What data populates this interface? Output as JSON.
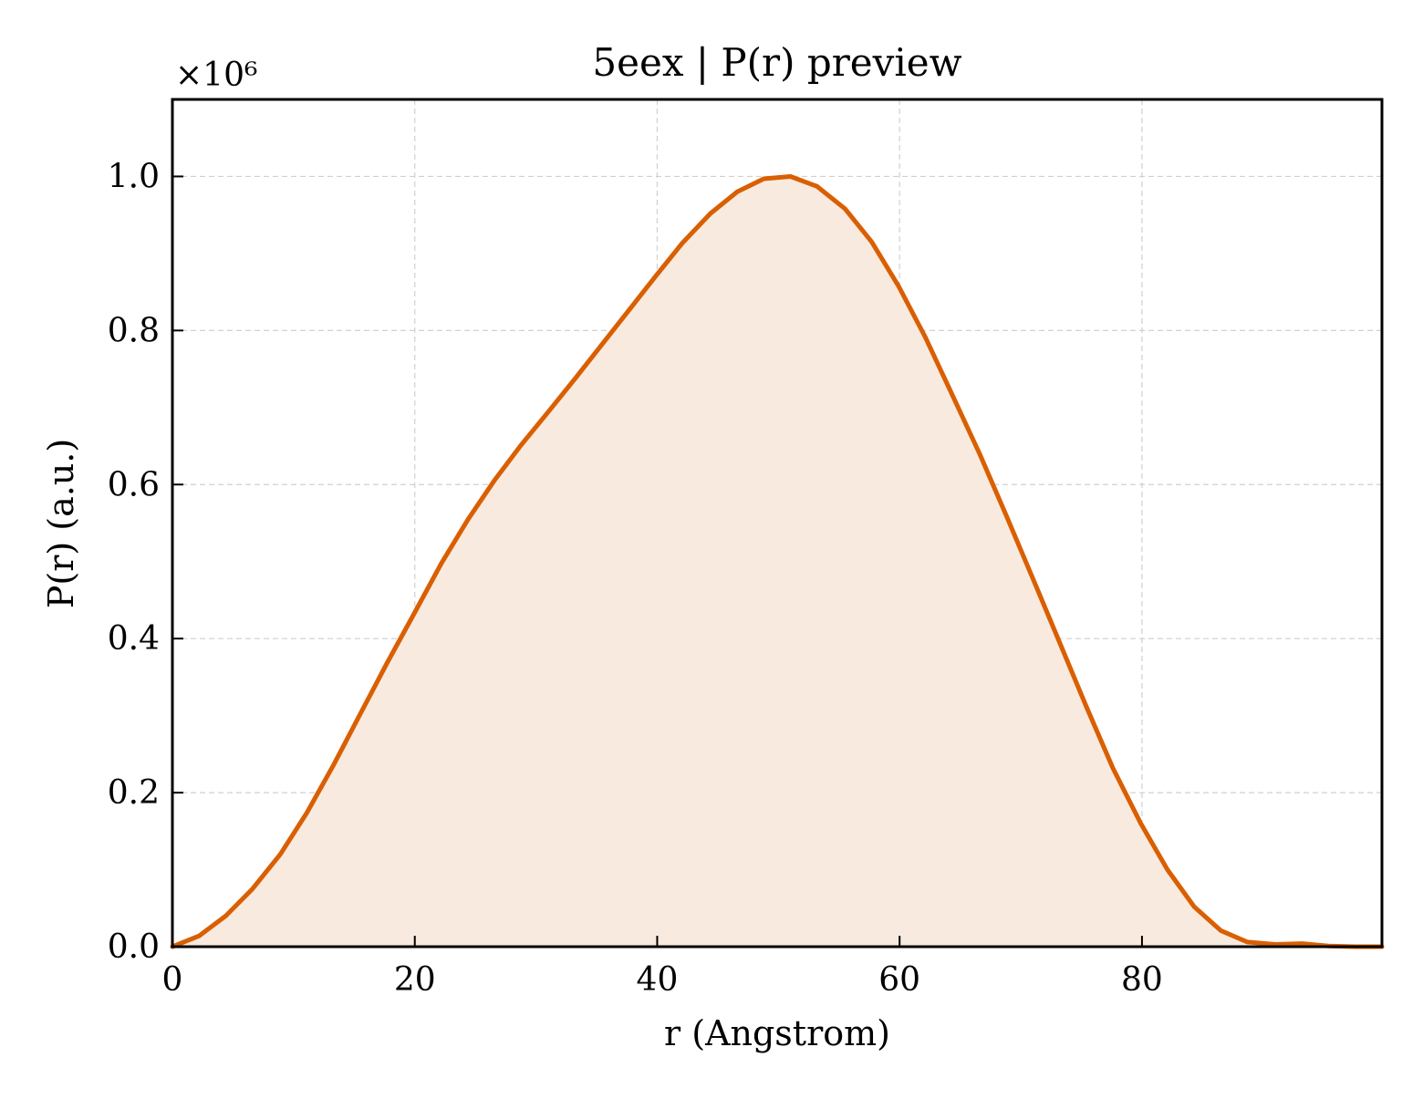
{
  "chart_data": {
    "type": "area",
    "title": "5eex | P(r) preview",
    "xlabel": "r (Angstrom)",
    "ylabel": "P(r) (a.u.)",
    "y_multiplier": "×10⁶",
    "xlim": [
      0,
      99.8
    ],
    "ylim": [
      0,
      1.1
    ],
    "grid": true,
    "legend": "none",
    "line_color": "#d95f02",
    "fill_color": "#f9eadf",
    "x_ticks": [
      {
        "value": 0,
        "label": "0"
      },
      {
        "value": 20,
        "label": "20"
      },
      {
        "value": 40,
        "label": "40"
      },
      {
        "value": 60,
        "label": "60"
      },
      {
        "value": 80,
        "label": "80"
      }
    ],
    "y_ticks": [
      {
        "value": 0.0,
        "label": "0.0"
      },
      {
        "value": 0.2,
        "label": "0.2"
      },
      {
        "value": 0.4,
        "label": "0.4"
      },
      {
        "value": 0.6,
        "label": "0.6"
      },
      {
        "value": 0.8,
        "label": "0.8"
      },
      {
        "value": 1.0,
        "label": "1.0"
      }
    ],
    "series": [
      {
        "x": [
          0,
          2.2,
          4.4,
          6.6,
          8.9,
          11.1,
          13.3,
          15.5,
          17.7,
          20.0,
          22.2,
          24.4,
          26.6,
          28.8,
          31.1,
          33.3,
          35.5,
          37.7,
          39.9,
          42.1,
          44.4,
          46.6,
          48.8,
          51.0,
          53.2,
          55.5,
          57.7,
          59.9,
          62.1,
          64.3,
          66.6,
          68.8,
          71.0,
          73.2,
          75.4,
          77.6,
          79.9,
          82.1,
          84.3,
          86.5,
          88.7,
          91.0,
          93.2,
          95.4,
          97.6,
          99.8
        ],
        "y": [
          0.0,
          0.014,
          0.04,
          0.075,
          0.12,
          0.174,
          0.236,
          0.302,
          0.368,
          0.434,
          0.498,
          0.555,
          0.606,
          0.652,
          0.696,
          0.739,
          0.783,
          0.827,
          0.871,
          0.914,
          0.952,
          0.98,
          0.997,
          1.0,
          0.987,
          0.958,
          0.915,
          0.858,
          0.792,
          0.718,
          0.64,
          0.56,
          0.478,
          0.395,
          0.312,
          0.232,
          0.16,
          0.1,
          0.052,
          0.021,
          0.006,
          0.003,
          0.004,
          0.001,
          0.0,
          0.0
        ]
      }
    ]
  }
}
